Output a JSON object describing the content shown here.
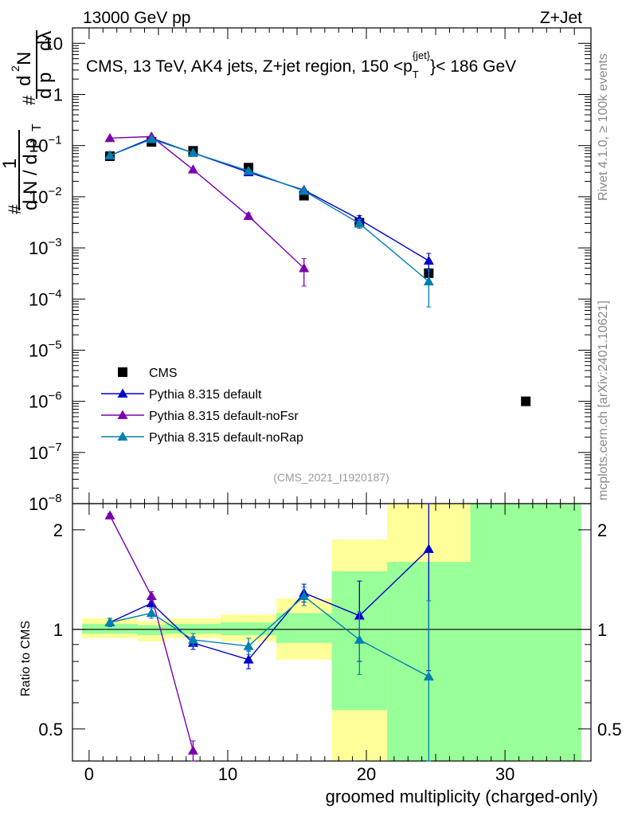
{
  "header": {
    "left_label": "13000 GeV pp",
    "right_label": "Z+Jet",
    "description": "CMS, 13 TeV, AK4 jets, Z+jet region, 150 <p",
    "pt_sub": "T",
    "pt_sup": "{jet}",
    "description_end": "}< 186 GeV",
    "analysis_id": "(CMS_2021_I1920187)"
  },
  "side_labels": {
    "rivet": "Rivet 4.1.0, ≥ 100k events",
    "mcplots": "mcplots.cern.ch [arXiv:2401.10621]"
  },
  "ylabel_main": {
    "hash1": "#",
    "one": "1",
    "denom_dN": "d N / d p",
    "denom_T": "T",
    "hash2": "#",
    "num_d2N": "d",
    "num_2": "2",
    "num_N": "N",
    "frac_dpt": "d p",
    "frac_dlambda": "dλ"
  },
  "colors": {
    "cms": "#000000",
    "default": "#0000cc",
    "noFsr": "#7a00b0",
    "noRap": "#0080b0",
    "band_green": "#99ff99",
    "band_yellow": "#ffff99"
  },
  "chart_data": [
    {
      "type": "scatter",
      "title": "CMS, 13 TeV, AK4 jets, Z+jet region, 150 < pT{jet} < 186 GeV",
      "xlabel": "groomed multiplicity (charged-only)",
      "ylabel": "1/dN/dpT d2N/dpT dlambda",
      "yscale": "log",
      "xlim": [
        -1.2,
        36.2
      ],
      "ylim": [
        1e-08,
        20
      ],
      "x_ticks": [
        "0",
        "10",
        "20",
        "30"
      ],
      "y_ticks": [
        {
          "base": "10",
          "exp": "",
          "value": 10
        },
        {
          "base": "1",
          "exp": "",
          "value": 1
        },
        {
          "base": "10",
          "exp": "−1",
          "value": 0.1
        },
        {
          "base": "10",
          "exp": "−2",
          "value": 0.01
        },
        {
          "base": "10",
          "exp": "−3",
          "value": 0.001
        },
        {
          "base": "10",
          "exp": "−4",
          "value": 0.0001
        },
        {
          "base": "10",
          "exp": "−5",
          "value": 1e-05
        },
        {
          "base": "10",
          "exp": "−6",
          "value": 1e-06
        },
        {
          "base": "10",
          "exp": "−7",
          "value": 1e-07
        },
        {
          "base": "10",
          "exp": "−8",
          "value": 1e-08
        }
      ],
      "series": [
        {
          "name": "CMS",
          "style": "cms",
          "x": [
            1.5,
            4.5,
            7.5,
            11.5,
            15.5,
            19.5,
            24.5,
            31.5
          ],
          "y": [
            0.062,
            0.118,
            0.079,
            0.037,
            0.0105,
            0.0031,
            0.00032,
            1e-06
          ]
        },
        {
          "name": "Pythia 8.315 default",
          "style": "default",
          "x": [
            1.5,
            4.5,
            7.5,
            11.5,
            15.5,
            19.5,
            24.5
          ],
          "y": [
            0.064,
            0.14,
            0.072,
            0.03,
            0.0135,
            0.0036,
            0.00056
          ],
          "err": [
            0,
            0,
            0,
            0,
            0,
            0.0007,
            0.00022
          ]
        },
        {
          "name": "Pythia 8.315 default-noFsr",
          "style": "noFsr",
          "x": [
            1.5,
            4.5,
            7.5,
            11.5,
            15.5
          ],
          "y": [
            0.14,
            0.15,
            0.034,
            0.0042,
            0.0004
          ],
          "err": [
            0,
            0,
            0,
            0.0006,
            0.00022
          ]
        },
        {
          "name": "Pythia 8.315 default-noRap",
          "style": "noRap",
          "x": [
            1.5,
            4.5,
            7.5,
            11.5,
            15.5,
            19.5,
            24.5
          ],
          "y": [
            0.064,
            0.133,
            0.072,
            0.032,
            0.013,
            0.003,
            0.00022
          ],
          "err": [
            0,
            0,
            0,
            0,
            0,
            0.0006,
            0.00015
          ]
        }
      ],
      "legend": [
        "CMS",
        "Pythia 8.315 default",
        "Pythia 8.315 default-noFsr",
        "Pythia 8.315 default-noRap"
      ]
    },
    {
      "type": "scatter",
      "ylabel": "Ratio to CMS",
      "yscale": "log",
      "xlim": [
        -1.2,
        36.2
      ],
      "ylim": [
        0.4,
        2.4
      ],
      "y_ticks": [
        {
          "label": "0.5",
          "value": 0.5
        },
        {
          "label": "1",
          "value": 1
        },
        {
          "label": "2",
          "value": 2
        }
      ],
      "bands": {
        "yellow": [
          {
            "x0": -0.5,
            "x1": 3.5,
            "lo": 0.94,
            "hi": 1.08
          },
          {
            "x0": 3.5,
            "x1": 5.5,
            "lo": 0.92,
            "hi": 1.06
          },
          {
            "x0": 5.5,
            "x1": 9.5,
            "lo": 0.94,
            "hi": 1.08
          },
          {
            "x0": 9.5,
            "x1": 13.5,
            "lo": 0.92,
            "hi": 1.11
          },
          {
            "x0": 13.5,
            "x1": 17.5,
            "lo": 0.81,
            "hi": 1.24
          },
          {
            "x0": 17.5,
            "x1": 21.5,
            "lo": 0.4,
            "hi": 1.87
          },
          {
            "x0": 21.5,
            "x1": 27.5,
            "lo": 0.4,
            "hi": 2.4
          }
        ],
        "green": [
          {
            "x0": -0.5,
            "x1": 3.5,
            "lo": 0.97,
            "hi": 1.04
          },
          {
            "x0": 3.5,
            "x1": 5.5,
            "lo": 0.96,
            "hi": 1.03
          },
          {
            "x0": 5.5,
            "x1": 9.5,
            "lo": 0.97,
            "hi": 1.04
          },
          {
            "x0": 9.5,
            "x1": 13.5,
            "lo": 0.96,
            "hi": 1.05
          },
          {
            "x0": 13.5,
            "x1": 17.5,
            "lo": 0.91,
            "hi": 1.12
          },
          {
            "x0": 17.5,
            "x1": 21.5,
            "lo": 0.57,
            "hi": 1.5
          },
          {
            "x0": 21.5,
            "x1": 27.5,
            "lo": 0.4,
            "hi": 1.6
          },
          {
            "x0": 27.5,
            "x1": 35.5,
            "lo": 0.4,
            "hi": 2.4
          }
        ]
      },
      "series": [
        {
          "name": "Pythia 8.315 default",
          "style": "default",
          "x": [
            1.5,
            4.5,
            7.5,
            11.5,
            15.5,
            19.5,
            24.5
          ],
          "y": [
            1.05,
            1.2,
            0.91,
            0.81,
            1.29,
            1.1,
            1.75
          ],
          "err": [
            0.03,
            0.04,
            0.04,
            0.05,
            0.08,
            0.3,
            1.0
          ]
        },
        {
          "name": "Pythia 8.315 default-noFsr",
          "style": "noFsr",
          "x": [
            1.5,
            4.5,
            7.5
          ],
          "y": [
            2.21,
            1.26,
            0.43
          ],
          "err": [
            0.03,
            0.04,
            0.03
          ]
        },
        {
          "name": "Pythia 8.315 default-noRap",
          "style": "noRap",
          "x": [
            1.5,
            4.5,
            7.5,
            11.5,
            15.5,
            19.5,
            24.5
          ],
          "y": [
            1.05,
            1.12,
            0.93,
            0.89,
            1.26,
            0.93,
            0.72
          ],
          "err": [
            0.03,
            0.04,
            0.04,
            0.05,
            0.08,
            0.2,
            0.5
          ]
        }
      ]
    }
  ]
}
